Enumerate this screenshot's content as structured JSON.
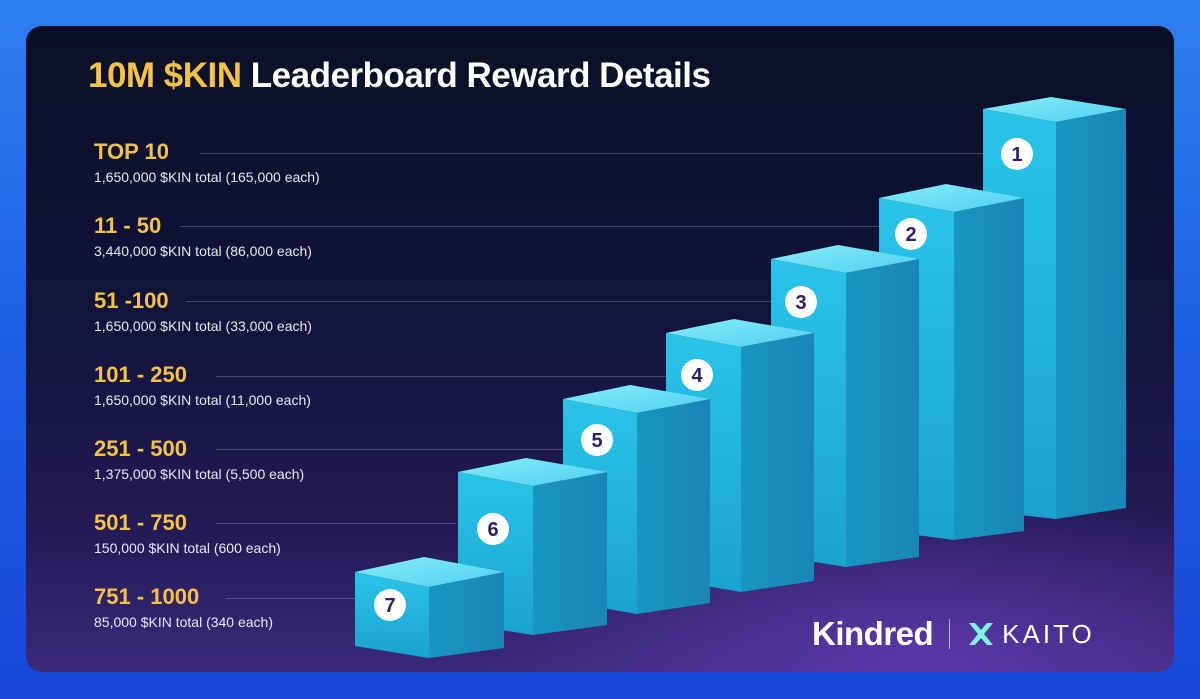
{
  "title": {
    "accent": "10M $KIN",
    "rest": "Leaderboard Reward Details"
  },
  "tiers": [
    {
      "label": "TOP 10",
      "desc": "1,650,000 $KIN total (165,000 each)",
      "rank": "1"
    },
    {
      "label": "11 - 50",
      "desc": "3,440,000 $KIN total (86,000 each)",
      "rank": "2"
    },
    {
      "label": "51 -100",
      "desc": "1,650,000 $KIN total (33,000 each)",
      "rank": "3"
    },
    {
      "label": "101 - 250",
      "desc": "1,650,000 $KIN total (11,000 each)",
      "rank": "4"
    },
    {
      "label": "251 - 500",
      "desc": "1,375,000 $KIN total (5,500 each)",
      "rank": "5"
    },
    {
      "label": "501 - 750",
      "desc": "150,000 $KIN total (600 each)",
      "rank": "6"
    },
    {
      "label": "751 - 1000",
      "desc": "85,000 $KIN total (340 each)",
      "rank": "7"
    }
  ],
  "logos": {
    "kindred": "Kindred",
    "kaito": "KAITO"
  },
  "colors": {
    "accent": "#f4c246",
    "bar_front": "#1fb6dc",
    "bar_side": "#1590b9",
    "bar_top": "#6fe0f5",
    "badge_text": "#2a1f6b"
  },
  "icons": {
    "kaito_mark": "kaito-x-icon"
  }
}
